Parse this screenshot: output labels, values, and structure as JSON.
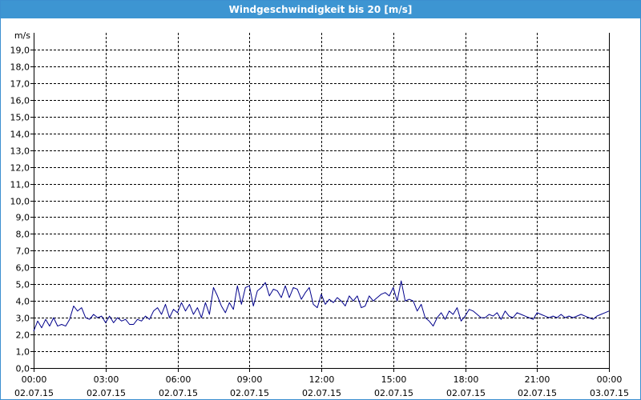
{
  "window": {
    "title": "Windgeschwindigkeit bis 20 [m/s]"
  },
  "colors": {
    "title_bar": "#3d95d2",
    "series": "#00008b",
    "grid": "#000000",
    "background": "#ffffff"
  },
  "chart_data": {
    "type": "line",
    "title": "Windgeschwindigkeit bis 20 [m/s]",
    "ylabel": "m/s",
    "xlabel": "",
    "ylim": [
      0,
      20
    ],
    "xlim": [
      "02.07.15 00:00",
      "03.07.15 00:00"
    ],
    "yticks": [
      "0,0",
      "1,0",
      "2,0",
      "3,0",
      "4,0",
      "5,0",
      "6,0",
      "7,0",
      "8,0",
      "9,0",
      "10,0",
      "11,0",
      "12,0",
      "13,0",
      "14,0",
      "15,0",
      "16,0",
      "17,0",
      "18,0",
      "19,0"
    ],
    "xticks": [
      {
        "time": "00:00",
        "date": "02.07.15"
      },
      {
        "time": "03:00",
        "date": "02.07.15"
      },
      {
        "time": "06:00",
        "date": "02.07.15"
      },
      {
        "time": "09:00",
        "date": "02.07.15"
      },
      {
        "time": "12:00",
        "date": "02.07.15"
      },
      {
        "time": "15:00",
        "date": "02.07.15"
      },
      {
        "time": "18:00",
        "date": "02.07.15"
      },
      {
        "time": "21:00",
        "date": "02.07.15"
      },
      {
        "time": "00:00",
        "date": "03.07.15"
      }
    ],
    "grid": true,
    "legend": "none",
    "series": [
      {
        "x": [
          "00:00",
          "00:10",
          "00:20",
          "00:30",
          "00:40",
          "00:50",
          "01:00",
          "01:10",
          "01:20",
          "01:30",
          "01:40",
          "01:50",
          "02:00",
          "02:10",
          "02:20",
          "02:30",
          "02:40",
          "02:50",
          "03:00",
          "03:10",
          "03:20",
          "03:30",
          "03:40",
          "03:50",
          "04:00",
          "04:10",
          "04:20",
          "04:30",
          "04:40",
          "04:50",
          "05:00",
          "05:10",
          "05:20",
          "05:30",
          "05:40",
          "05:50",
          "06:00",
          "06:10",
          "06:20",
          "06:30",
          "06:40",
          "06:50",
          "07:00",
          "07:10",
          "07:20",
          "07:30",
          "07:40",
          "07:50",
          "08:00",
          "08:10",
          "08:20",
          "08:30",
          "08:40",
          "08:50",
          "09:00",
          "09:10",
          "09:20",
          "09:30",
          "09:40",
          "09:50",
          "10:00",
          "10:10",
          "10:20",
          "10:30",
          "10:40",
          "10:50",
          "11:00",
          "11:10",
          "11:20",
          "11:30",
          "11:40",
          "11:50",
          "12:00",
          "12:10",
          "12:20",
          "12:30",
          "12:40",
          "12:50",
          "13:00",
          "13:10",
          "13:20",
          "13:30",
          "13:40",
          "13:50",
          "14:00",
          "14:10",
          "14:20",
          "14:30",
          "14:40",
          "14:50",
          "15:00",
          "15:10",
          "15:20",
          "15:30",
          "15:40",
          "15:50",
          "16:00",
          "16:10",
          "16:20",
          "16:30",
          "16:40",
          "16:50",
          "17:00",
          "17:10",
          "17:20",
          "17:30",
          "17:40",
          "17:50",
          "18:00",
          "18:10",
          "18:20",
          "18:30",
          "18:40",
          "18:50",
          "19:00",
          "19:10",
          "19:20",
          "19:30",
          "19:40",
          "19:50",
          "20:00",
          "20:10",
          "20:20",
          "20:30",
          "20:40",
          "20:50",
          "21:00",
          "21:10",
          "21:20",
          "21:30",
          "21:40",
          "21:50",
          "22:00",
          "22:10",
          "22:20",
          "22:30",
          "22:40",
          "22:50",
          "23:00",
          "23:10",
          "23:20",
          "23:30",
          "23:40",
          "23:50",
          "24:00"
        ],
        "values": [
          2.2,
          2.8,
          2.4,
          2.9,
          2.5,
          3.0,
          2.5,
          2.6,
          2.5,
          2.9,
          3.7,
          3.4,
          3.6,
          3.0,
          2.9,
          3.2,
          3.0,
          3.1,
          2.7,
          3.1,
          2.7,
          3.0,
          2.8,
          2.9,
          2.6,
          2.6,
          2.9,
          2.8,
          3.1,
          2.9,
          3.4,
          3.6,
          3.2,
          3.8,
          3.0,
          3.5,
          3.3,
          3.9,
          3.4,
          3.8,
          3.2,
          3.6,
          3.0,
          3.9,
          3.2,
          4.8,
          4.3,
          3.7,
          3.3,
          3.9,
          3.5,
          4.9,
          3.8,
          4.8,
          4.9,
          3.7,
          4.6,
          4.8,
          5.1,
          4.3,
          4.7,
          4.6,
          4.2,
          4.9,
          4.2,
          4.8,
          4.7,
          4.1,
          4.5,
          4.8,
          3.8,
          3.6,
          4.4,
          3.8,
          4.1,
          3.9,
          4.2,
          4.0,
          3.7,
          4.3,
          4.0,
          4.3,
          3.6,
          3.7,
          4.3,
          4.0,
          4.2,
          4.4,
          4.5,
          4.3,
          4.8,
          4.0,
          5.2,
          4.0,
          4.1,
          4.0,
          3.4,
          3.8,
          3.0,
          2.8,
          2.5,
          3.0,
          3.3,
          2.9,
          3.4,
          3.2,
          3.6,
          2.8,
          3.1,
          3.5,
          3.4,
          3.2,
          3.0,
          3.0,
          3.2,
          3.1,
          3.3,
          2.9,
          3.4,
          3.1,
          3.0,
          3.3,
          3.2,
          3.1,
          3.0,
          2.9,
          3.3,
          3.2,
          3.1,
          3.0,
          3.1,
          3.0,
          3.2,
          3.0,
          3.1,
          3.0,
          3.1,
          3.2,
          3.1,
          3.0,
          2.9,
          3.1,
          3.2,
          3.3,
          3.4
        ]
      }
    ]
  }
}
